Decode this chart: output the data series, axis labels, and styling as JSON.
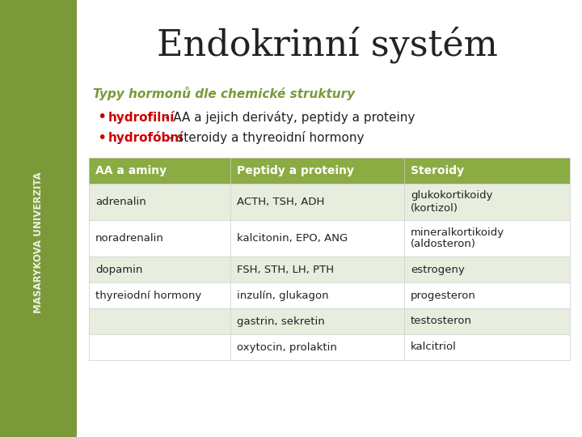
{
  "title": "Endokrinní systém",
  "subtitle": "Typy hormonů dle chemické struktury",
  "bullet1_bold": "hydrofilní",
  "bullet1_rest": " - AA a jejich deriváty, peptidy a proteiny",
  "bullet2_bold": "hydrofóbní",
  "bullet2_rest": " - steroidy a thyreoidní hormony",
  "table_headers": [
    "AA a aminy",
    "Peptidy a proteiny",
    "Steroidy"
  ],
  "table_rows": [
    [
      "adrenalin",
      "ACTH, TSH, ADH",
      "glukokortikoidy\n(kortizol)"
    ],
    [
      "noradrenalin",
      "kalcitonin, EPO, ANG",
      "mineralkortikoidy\n(aldosteron)"
    ],
    [
      "dopamin",
      "FSH, STH, LH, PTH",
      "estrogeny"
    ],
    [
      "thyreiodní hormony",
      "inzulín, glukagon",
      "progesteron"
    ],
    [
      "",
      "gastrin, sekretin",
      "testosteron"
    ],
    [
      "",
      "oxytocin, prolaktin",
      "kalcitriol"
    ]
  ],
  "sidebar_color": "#7a9a3a",
  "header_color": "#8aac42",
  "header_text_color": "#ffffff",
  "row_alt_color": "#e8eedd",
  "row_color": "#ffffff",
  "title_color": "#222222",
  "subtitle_color": "#7a9a3a",
  "bullet_keyword_color": "#cc0000",
  "bullet_text_color": "#222222",
  "sidebar_text": "MASARYKOVA UNIVERZITA",
  "sidebar_text_color": "#ffffff"
}
